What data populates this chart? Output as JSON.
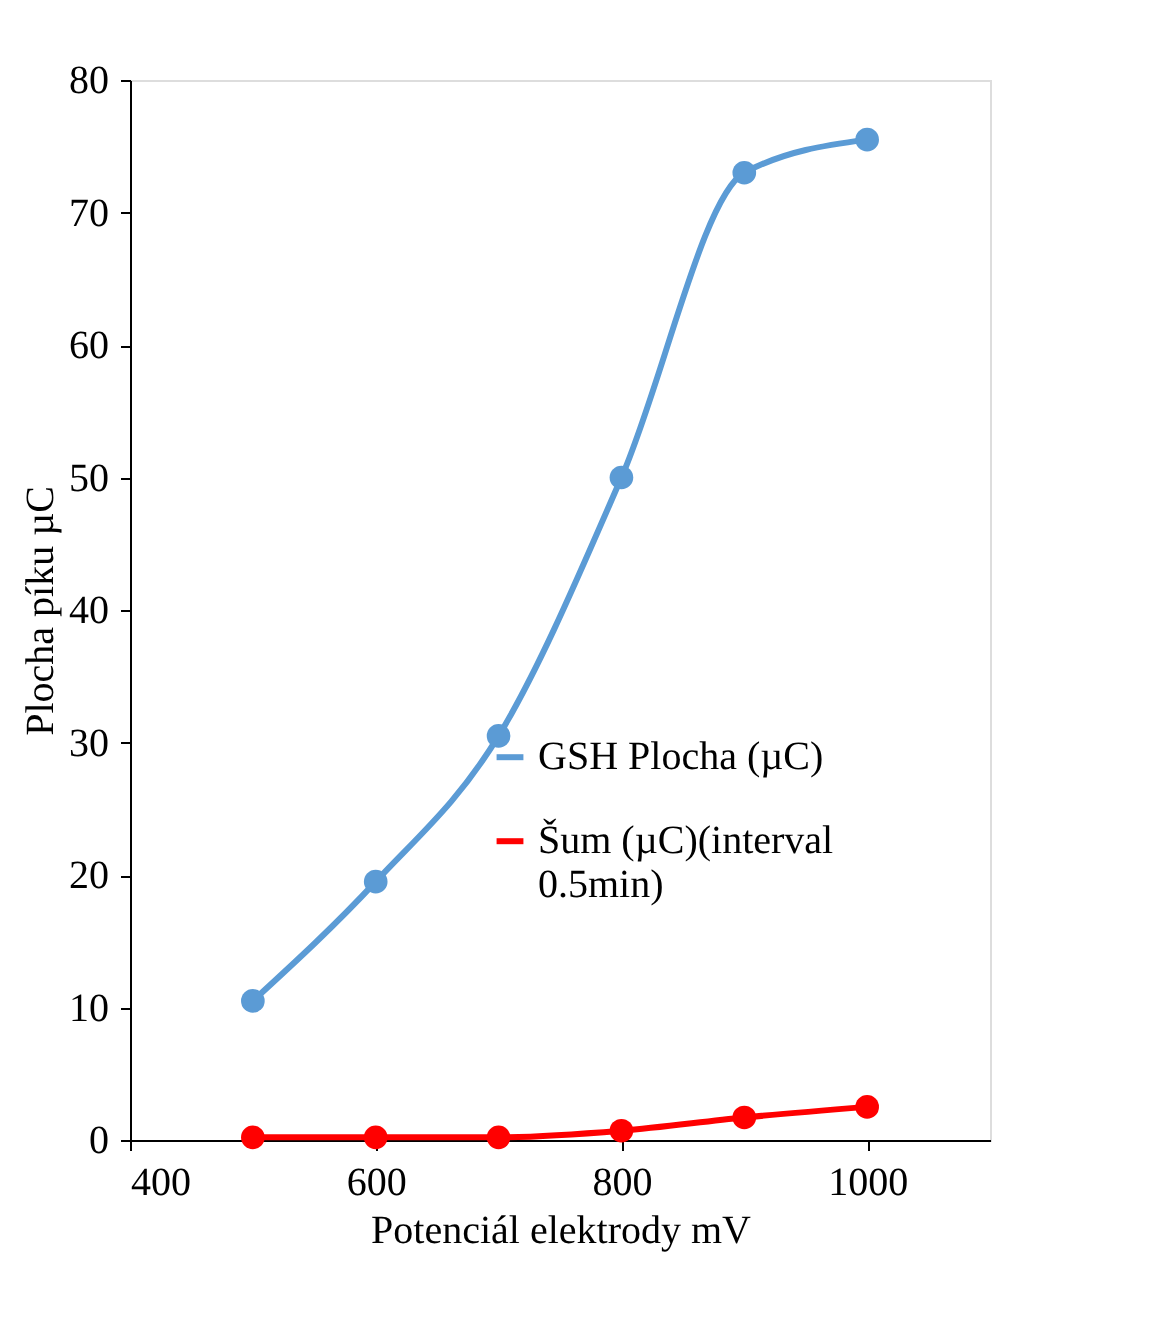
{
  "chart_data": {
    "type": "line",
    "xlabel": "Potenciál elektrody mV",
    "ylabel": "Plocha píku µC",
    "x": [
      500,
      600,
      700,
      800,
      900,
      1000
    ],
    "series": [
      {
        "name": "GSH Plocha (µC)",
        "color": "#5b9bd5",
        "values": [
          10.5,
          19.5,
          30.5,
          50,
          73,
          75.5
        ]
      },
      {
        "name": "Šum (µC)(interval 0.5min)",
        "color": "#ff0000",
        "values": [
          0.2,
          0.2,
          0.2,
          0.7,
          1.7,
          2.5
        ]
      }
    ],
    "xlim": [
      400,
      1100
    ],
    "xticks": [
      400,
      600,
      800,
      1000
    ],
    "ylim": [
      0,
      80
    ],
    "yticks": [
      0,
      10,
      20,
      30,
      40,
      50,
      60,
      70,
      80
    ],
    "grid": false,
    "legend": "right",
    "marker": "circle",
    "line_style": "solid"
  }
}
